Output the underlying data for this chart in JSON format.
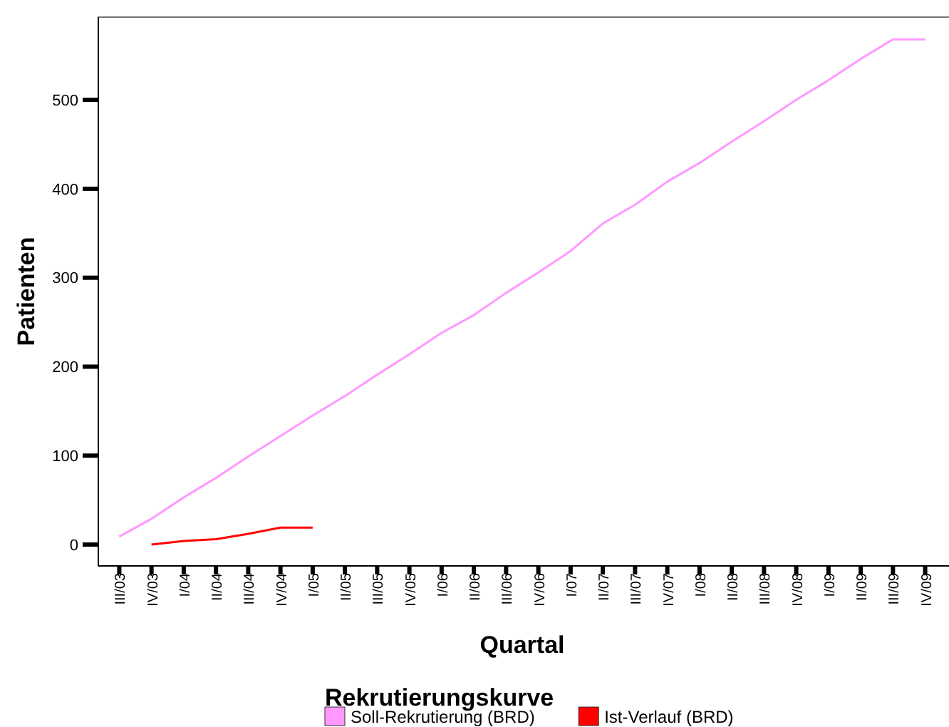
{
  "chart_data": {
    "type": "line",
    "xlabel": "Quartal",
    "ylabel": "Patienten",
    "legend_title": "Rekrutierungskurve",
    "legend": "bottom",
    "marker": "none",
    "line_style": "solid",
    "grid": false,
    "categories": [
      "III/03",
      "IV/03",
      "I/04",
      "II/04",
      "III/04",
      "IV/04",
      "I/05",
      "II/05",
      "III/05",
      "IV/05",
      "I/06",
      "II/06",
      "III/06",
      "IV/06",
      "I/07",
      "II/07",
      "III/07",
      "IV/07",
      "I/08",
      "II/08",
      "III/08",
      "IV/08",
      "I/09",
      "II/09",
      "III/09",
      "IV/09"
    ],
    "ylim": [
      -24,
      593
    ],
    "yticks": [
      0,
      100,
      200,
      300,
      400,
      500
    ],
    "series": [
      {
        "name": "Soll-Rekrutierung (BRD)",
        "color": "#ff99ff",
        "values": [
          9,
          29,
          53,
          75,
          99,
          122,
          145,
          167,
          191,
          214,
          238,
          258,
          283,
          306,
          330,
          361,
          382,
          408,
          429,
          453,
          476,
          500,
          522,
          546,
          568,
          568
        ]
      },
      {
        "name": "Ist-Verlauf (BRD)",
        "color": "#ff0000",
        "values": [
          null,
          0,
          4,
          6,
          12,
          19,
          19,
          null,
          null,
          null,
          null,
          null,
          null,
          null,
          null,
          null,
          null,
          null,
          null,
          null,
          null,
          null,
          null,
          null,
          null,
          null
        ]
      }
    ]
  }
}
